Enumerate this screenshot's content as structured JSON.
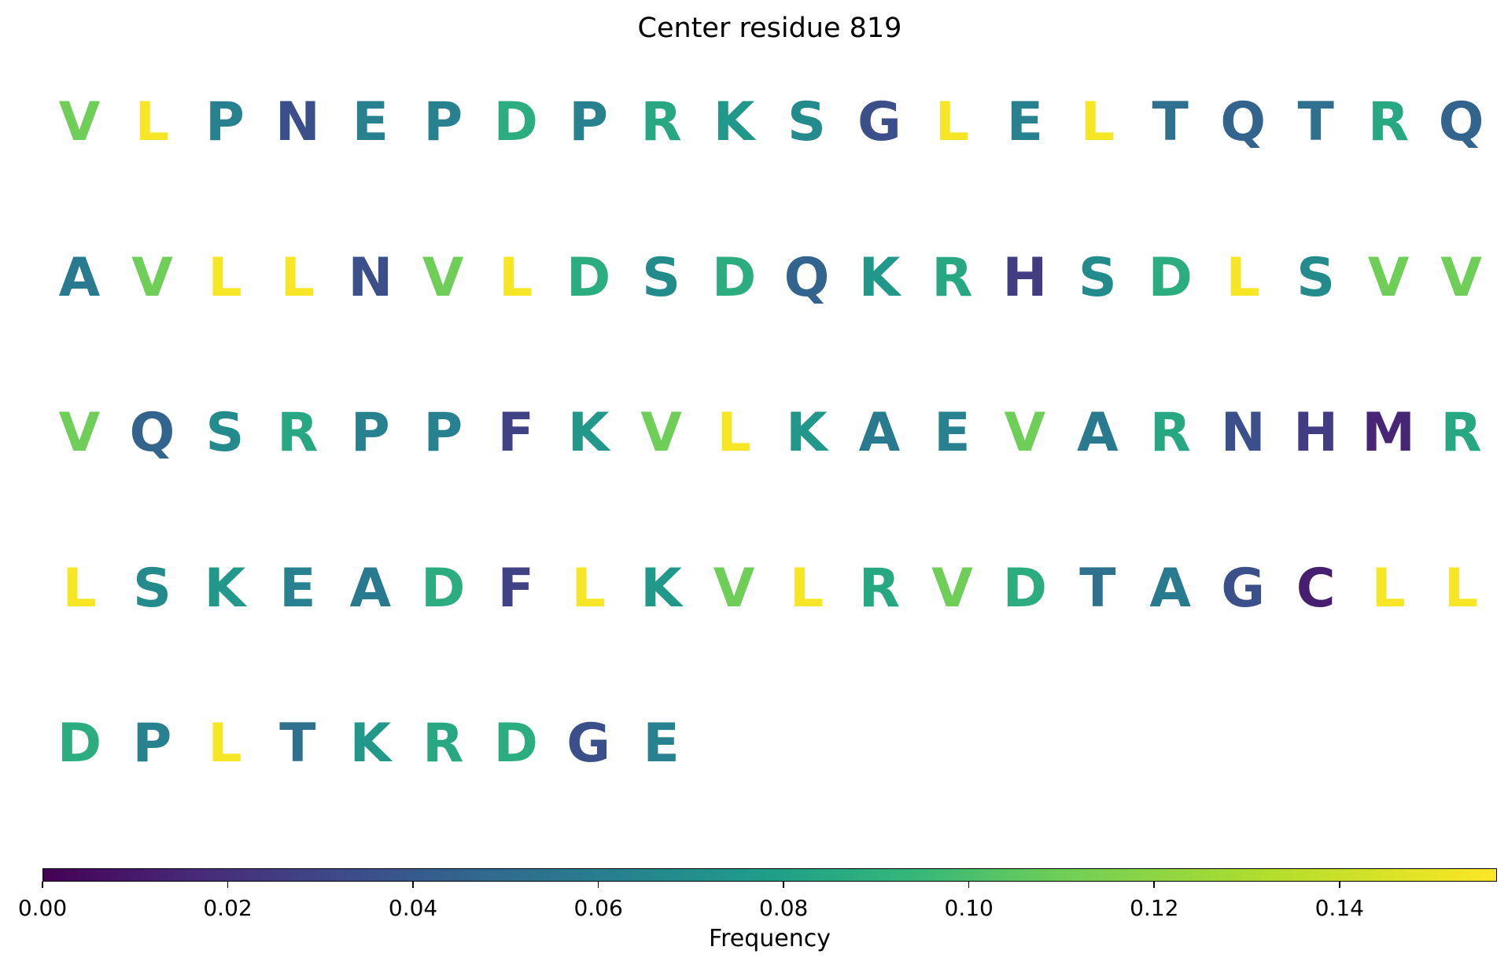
{
  "chart_data": {
    "type": "heatmap",
    "title": "Center residue 819",
    "colormap": "viridis",
    "colorbar": {
      "label": "Frequency",
      "range": [
        0,
        0.157
      ],
      "ticks": [
        "0.00",
        "0.02",
        "0.04",
        "0.06",
        "0.08",
        "0.10",
        "0.12",
        "0.14"
      ],
      "tick_values": [
        0,
        0.02,
        0.04,
        0.06,
        0.08,
        0.1,
        0.12,
        0.14
      ]
    },
    "residues": [
      {
        "aa": "V",
        "freq": 0.11
      },
      {
        "aa": "L",
        "freq": 0.155
      },
      {
        "aa": "P",
        "freq": 0.062
      },
      {
        "aa": "N",
        "freq": 0.035
      },
      {
        "aa": "E",
        "freq": 0.062
      },
      {
        "aa": "P",
        "freq": 0.062
      },
      {
        "aa": "D",
        "freq": 0.088
      },
      {
        "aa": "P",
        "freq": 0.062
      },
      {
        "aa": "R",
        "freq": 0.085
      },
      {
        "aa": "K",
        "freq": 0.075
      },
      {
        "aa": "S",
        "freq": 0.068
      },
      {
        "aa": "G",
        "freq": 0.035
      },
      {
        "aa": "L",
        "freq": 0.155
      },
      {
        "aa": "E",
        "freq": 0.062
      },
      {
        "aa": "L",
        "freq": 0.155
      },
      {
        "aa": "T",
        "freq": 0.052
      },
      {
        "aa": "Q",
        "freq": 0.045
      },
      {
        "aa": "T",
        "freq": 0.052
      },
      {
        "aa": "R",
        "freq": 0.085
      },
      {
        "aa": "Q",
        "freq": 0.045
      },
      {
        "aa": "A",
        "freq": 0.058
      },
      {
        "aa": "V",
        "freq": 0.11
      },
      {
        "aa": "L",
        "freq": 0.155
      },
      {
        "aa": "L",
        "freq": 0.155
      },
      {
        "aa": "N",
        "freq": 0.035
      },
      {
        "aa": "V",
        "freq": 0.11
      },
      {
        "aa": "L",
        "freq": 0.155
      },
      {
        "aa": "D",
        "freq": 0.088
      },
      {
        "aa": "S",
        "freq": 0.068
      },
      {
        "aa": "D",
        "freq": 0.088
      },
      {
        "aa": "Q",
        "freq": 0.045
      },
      {
        "aa": "K",
        "freq": 0.075
      },
      {
        "aa": "R",
        "freq": 0.085
      },
      {
        "aa": "H",
        "freq": 0.025
      },
      {
        "aa": "S",
        "freq": 0.068
      },
      {
        "aa": "D",
        "freq": 0.088
      },
      {
        "aa": "L",
        "freq": 0.155
      },
      {
        "aa": "S",
        "freq": 0.068
      },
      {
        "aa": "V",
        "freq": 0.11
      },
      {
        "aa": "V",
        "freq": 0.11
      },
      {
        "aa": "V",
        "freq": 0.11
      },
      {
        "aa": "Q",
        "freq": 0.045
      },
      {
        "aa": "S",
        "freq": 0.068
      },
      {
        "aa": "R",
        "freq": 0.085
      },
      {
        "aa": "P",
        "freq": 0.062
      },
      {
        "aa": "P",
        "freq": 0.062
      },
      {
        "aa": "F",
        "freq": 0.028
      },
      {
        "aa": "K",
        "freq": 0.075
      },
      {
        "aa": "V",
        "freq": 0.11
      },
      {
        "aa": "L",
        "freq": 0.155
      },
      {
        "aa": "K",
        "freq": 0.075
      },
      {
        "aa": "A",
        "freq": 0.058
      },
      {
        "aa": "E",
        "freq": 0.062
      },
      {
        "aa": "V",
        "freq": 0.11
      },
      {
        "aa": "A",
        "freq": 0.058
      },
      {
        "aa": "R",
        "freq": 0.085
      },
      {
        "aa": "N",
        "freq": 0.035
      },
      {
        "aa": "H",
        "freq": 0.025
      },
      {
        "aa": "M",
        "freq": 0.015
      },
      {
        "aa": "R",
        "freq": 0.085
      },
      {
        "aa": "L",
        "freq": 0.155
      },
      {
        "aa": "S",
        "freq": 0.068
      },
      {
        "aa": "K",
        "freq": 0.075
      },
      {
        "aa": "E",
        "freq": 0.062
      },
      {
        "aa": "A",
        "freq": 0.058
      },
      {
        "aa": "D",
        "freq": 0.088
      },
      {
        "aa": "F",
        "freq": 0.028
      },
      {
        "aa": "L",
        "freq": 0.155
      },
      {
        "aa": "K",
        "freq": 0.075
      },
      {
        "aa": "V",
        "freq": 0.11
      },
      {
        "aa": "L",
        "freq": 0.155
      },
      {
        "aa": "R",
        "freq": 0.085
      },
      {
        "aa": "V",
        "freq": 0.11
      },
      {
        "aa": "D",
        "freq": 0.088
      },
      {
        "aa": "T",
        "freq": 0.052
      },
      {
        "aa": "A",
        "freq": 0.058
      },
      {
        "aa": "G",
        "freq": 0.035
      },
      {
        "aa": "C",
        "freq": 0.012
      },
      {
        "aa": "L",
        "freq": 0.155
      },
      {
        "aa": "L",
        "freq": 0.155
      },
      {
        "aa": "D",
        "freq": 0.088
      },
      {
        "aa": "P",
        "freq": 0.062
      },
      {
        "aa": "L",
        "freq": 0.155
      },
      {
        "aa": "T",
        "freq": 0.052
      },
      {
        "aa": "K",
        "freq": 0.075
      },
      {
        "aa": "R",
        "freq": 0.085
      },
      {
        "aa": "D",
        "freq": 0.088
      },
      {
        "aa": "G",
        "freq": 0.035
      },
      {
        "aa": "E",
        "freq": 0.062
      }
    ]
  }
}
